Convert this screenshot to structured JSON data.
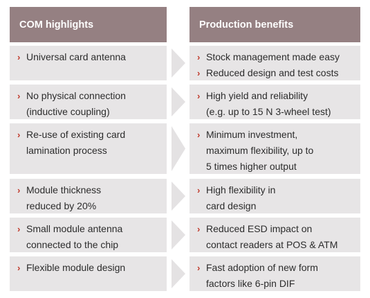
{
  "headers": {
    "left": "COM highlights",
    "right": "Production benefits"
  },
  "colors": {
    "header_bg": "#958082",
    "cell_bg": "#e7e5e6",
    "bullet": "#c0392b",
    "arrow": "#e4e2e3"
  },
  "bullet_glyph": "›",
  "rows": [
    {
      "left": [
        "Universal card antenna"
      ],
      "right": [
        "Stock management made easy",
        "Reduced design and test costs"
      ]
    },
    {
      "left": [
        "No physical connection\n(inductive coupling)"
      ],
      "right": [
        "High yield and reliability\n(e.g. up to 15 N 3-wheel test)"
      ]
    },
    {
      "left": [
        "Re-use of existing card\nlamination process"
      ],
      "right": [
        "Minimum investment,\nmaximum flexibility, up to\n5 times higher output"
      ]
    },
    {
      "left": [
        "Module thickness\nreduced by 20%"
      ],
      "right": [
        "High flexibility in\ncard design"
      ]
    },
    {
      "left": [
        "Small module antenna\nconnected to the chip"
      ],
      "right": [
        "Reduced ESD impact on\ncontact readers at POS & ATM"
      ]
    },
    {
      "left": [
        "Flexible module design"
      ],
      "right": [
        "Fast adoption of new form\nfactors like 6-pin DIF"
      ]
    }
  ]
}
